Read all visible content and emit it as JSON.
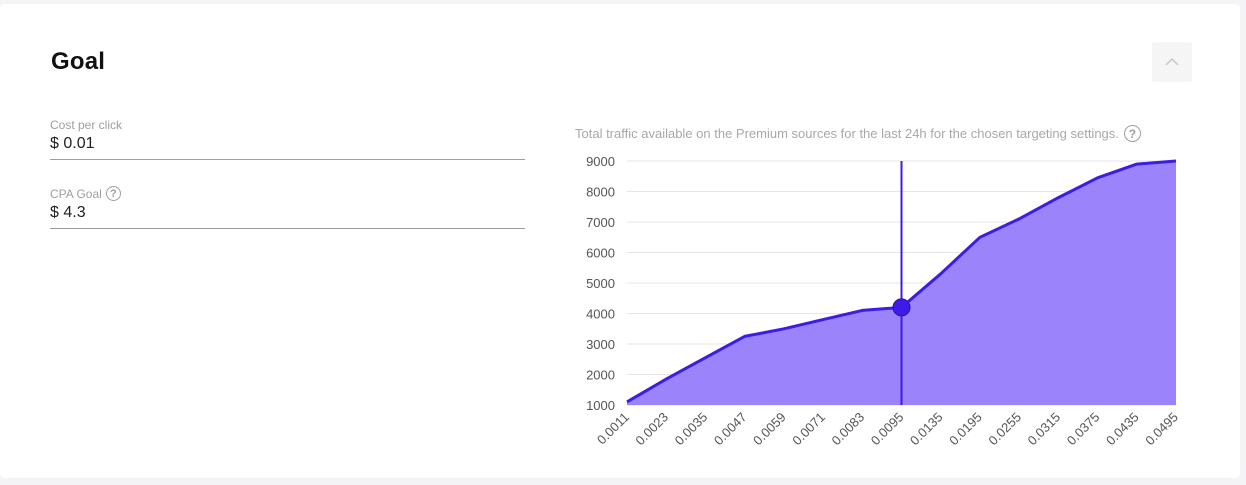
{
  "section": {
    "title": "Goal"
  },
  "fields": {
    "cost_per_click": {
      "label": "Cost per click",
      "value": "$ 0.01"
    },
    "cpa_goal": {
      "label": "CPA Goal",
      "value": "$ 4.3",
      "help": "?"
    }
  },
  "chart_note": {
    "text": "Total traffic available on the Premium sources for the last 24h for the chosen targeting settings.",
    "help": "?"
  },
  "colors": {
    "fill": "#9a83fb",
    "line": "#3d1be8",
    "marker": "#3d1be8",
    "grid": "#e6e6e6"
  },
  "chart_data": {
    "type": "area",
    "title": "",
    "xlabel": "",
    "ylabel": "",
    "categories": [
      "0.0011",
      "0.0023",
      "0.0035",
      "0.0047",
      "0.0059",
      "0.0071",
      "0.0083",
      "0.0095",
      "0.0135",
      "0.0195",
      "0.0255",
      "0.0315",
      "0.0375",
      "0.0435",
      "0.0495"
    ],
    "x": [
      0,
      1,
      2,
      3,
      4,
      5,
      6,
      7,
      8,
      9,
      10,
      11,
      12,
      13,
      14
    ],
    "series": [
      {
        "values": [
          1100,
          1850,
          2550,
          3250,
          3500,
          3800,
          4100,
          4200,
          5300,
          6500,
          7100,
          7800,
          8450,
          8900,
          9000
        ]
      }
    ],
    "ylim": [
      1000,
      9000
    ],
    "yticks": [
      9000,
      8000,
      7000,
      6000,
      5000,
      4000,
      3000,
      2000,
      1000
    ],
    "grid": true,
    "legend": "none",
    "marker": {
      "x": "0.0095",
      "y": 4200
    }
  }
}
